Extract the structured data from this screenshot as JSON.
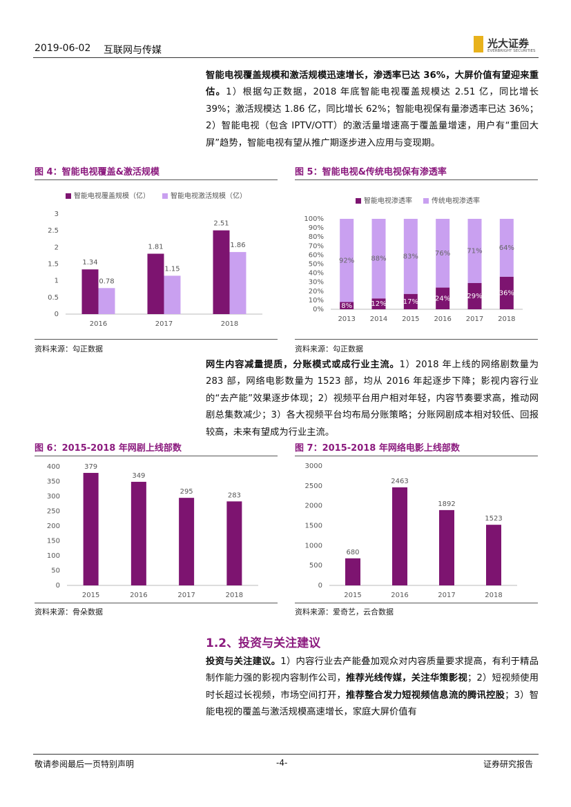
{
  "header": {
    "date": "2019-06-02",
    "sector": "互联网与传媒",
    "logo": "光大证券",
    "logo_en": "EVERBRIGHT SECURITIES"
  },
  "paragraphs": [
    {
      "runs": [
        {
          "text": "智能电视覆盖规模和激活规模迅速增长，渗透率已达 36%，大屏价值有望迎来重估。",
          "bold": true
        },
        {
          "text": "1）根据勾正数据，2018 年底智能电视覆盖规模达 2.51 亿，同比增长 39%；激活规模达 1.86 亿，同比增长 62%；智能电视保有量渗透率已达 36%；2）智能电视（包含 IPTV/OTT）的激活量增速高于覆盖量增速，用户有“重回大屏”趋势，智能电视有望从推广期逐步进入应用与变现期。",
          "bold": false
        }
      ]
    },
    {
      "runs": [
        {
          "text": "网生内容减量提质，分账模式或成行业主流。",
          "bold": true
        },
        {
          "text": "1）2018 年上线的网络剧数量为 283 部，网络电影数量为 1523 部，均从 2016 年起逐步下降；影视内容行业的“去产能”效果逐步体现；2）视频平台用户相对年轻，内容节奏要求高，推动网剧总集数减少；3）各大视频平台均布局分账策略；分账网剧成本相对较低、回报较高，未来有望成为行业主流。",
          "bold": false
        }
      ]
    },
    {
      "runs": [
        {
          "text": "投资与关注建议。",
          "bold": true
        },
        {
          "text": "1）内容行业去产能叠加观众对内容质量要求提高，有利于精品制作能力强的影视内容制作公司，",
          "bold": false
        },
        {
          "text": "推荐光线传媒，关注华策影视",
          "bold": true
        },
        {
          "text": "；2）短视频使用时长超过长视频，市场空间打开，",
          "bold": false
        },
        {
          "text": "推荐整合发力短视频信息流的腾讯控股",
          "bold": true
        },
        {
          "text": "；3）智能电视的覆盖与激活规模高速增长，家庭大屏价值有",
          "bold": false
        }
      ]
    }
  ],
  "section": {
    "number": "1.2、",
    "title": "投资与关注建议"
  },
  "chart_data": [
    {
      "type": "grouped_bar",
      "title": "图 4：智能电视覆盖&激活规模",
      "source": "资料来源：勾正数据",
      "categories": [
        "2016",
        "2017",
        "2018"
      ],
      "series": [
        {
          "name": "智能电视覆盖规模（亿）",
          "color": "#7d1470",
          "values": [
            1.34,
            1.81,
            2.51
          ]
        },
        {
          "name": "智能电视激活规模（亿）",
          "color": "#c9a0f0",
          "values": [
            0.78,
            1.15,
            1.86
          ]
        }
      ],
      "ylim": [
        0,
        3
      ],
      "yticks": [
        0,
        0.5,
        1,
        1.5,
        2,
        2.5,
        3
      ],
      "data_labels": true
    },
    {
      "type": "stacked_bar",
      "title": "图 5：智能电视&传统电视保有渗透率",
      "source": "资料来源：勾正数据",
      "categories": [
        "2013",
        "2014",
        "2015",
        "2016",
        "2017",
        "2018"
      ],
      "series": [
        {
          "name": "智能电视渗透率",
          "color": "#7d1470",
          "values": [
            8,
            12,
            17,
            24,
            29,
            36
          ],
          "value_labels": [
            "8%",
            "12%",
            "17%",
            "24%",
            "29%",
            "36%"
          ]
        },
        {
          "name": "传统电视渗透率",
          "color": "#c9a0f0",
          "values": [
            92,
            88,
            83,
            76,
            71,
            64
          ],
          "value_labels": [
            "92%",
            "88%",
            "83%",
            "76%",
            "71%",
            "64%"
          ]
        }
      ],
      "ylim": [
        0,
        100
      ],
      "yticks": [
        {
          "value": 0,
          "label": "0%"
        },
        {
          "value": 10,
          "label": "10%"
        },
        {
          "value": 20,
          "label": "20%"
        },
        {
          "value": 30,
          "label": "30%"
        },
        {
          "value": 40,
          "label": "40%"
        },
        {
          "value": 50,
          "label": "50%"
        },
        {
          "value": 60,
          "label": "60%"
        },
        {
          "value": 70,
          "label": "70%"
        },
        {
          "value": 80,
          "label": "80%"
        },
        {
          "value": 90,
          "label": "90%"
        },
        {
          "value": 100,
          "label": "100%"
        }
      ],
      "data_labels": true
    },
    {
      "type": "bar",
      "title": "图 6：2015-2018 年网剧上线部数",
      "source": "资料来源：骨朵数据",
      "categories": [
        "2015",
        "2016",
        "2017",
        "2018"
      ],
      "values": [
        379,
        349,
        295,
        283
      ],
      "color": "#7d1470",
      "ylim": [
        0,
        400
      ],
      "yticks": [
        0,
        50,
        100,
        150,
        200,
        250,
        300,
        350,
        400
      ],
      "data_labels": true
    },
    {
      "type": "bar",
      "title": "图 7：2015-2018 年网络电影上线部数",
      "source": "资料来源：爱奇艺，云合数据",
      "categories": [
        "2015",
        "2016",
        "2017",
        "2018"
      ],
      "values": [
        680,
        2463,
        1892,
        1523
      ],
      "color": "#7d1470",
      "ylim": [
        0,
        3000
      ],
      "yticks": [
        0,
        500,
        1000,
        1500,
        2000,
        2500,
        3000
      ],
      "data_labels": true
    }
  ],
  "footer": {
    "left": "敬请参阅最后一页特别声明",
    "page": "-4-",
    "right": "证券研究报告"
  }
}
